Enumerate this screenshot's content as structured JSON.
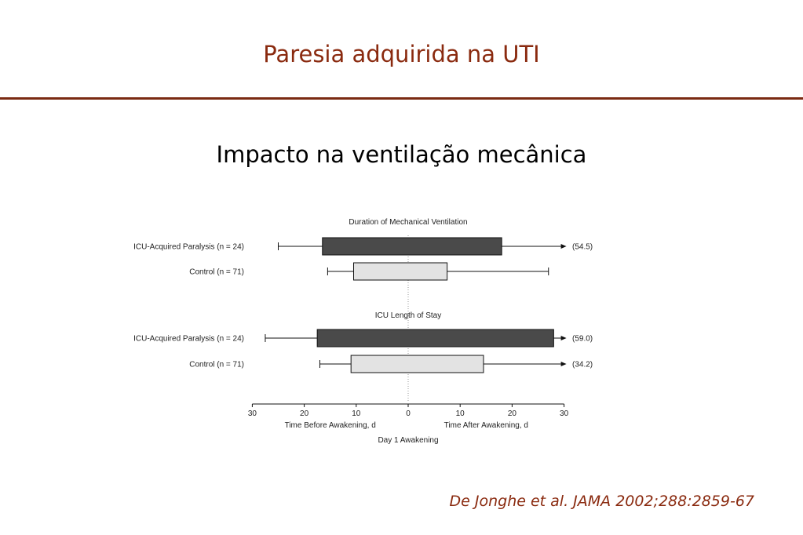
{
  "slide": {
    "title": "Paresia adquirida na UTI",
    "subtitle": "Impacto na ventilação mecânica",
    "citation": "De Jonghe et al. JAMA 2002;288:2859-67"
  },
  "colors": {
    "title": "#8a2a0f",
    "rule": "#7a2a12",
    "dark_box": "#4a4a4a",
    "light_box": "#e3e3e3"
  },
  "chart_data": {
    "type": "box",
    "xlim": [
      -30,
      30
    ],
    "ticks": [
      "30",
      "20",
      "10",
      "0",
      "10",
      "20",
      "30"
    ],
    "xlabel_left": "Time Before Awakening, d",
    "xlabel_right": "Time After Awakening, d",
    "xlabel_center": "Day 1 Awakening",
    "panels": [
      {
        "title": "Duration of Mechanical Ventilation",
        "rows": [
          {
            "label": "ICU-Acquired Paralysis (n = 24)",
            "whisker_low": -25,
            "q1": -16.5,
            "q3": 18,
            "whisker_high": 30,
            "arrow": true,
            "max_label": "(54.5)",
            "shade": "dark"
          },
          {
            "label": "Control (n = 71)",
            "whisker_low": -15.5,
            "q1": -10.5,
            "q3": 7.5,
            "whisker_high": 27,
            "arrow": false,
            "max_label": "",
            "shade": "light"
          }
        ]
      },
      {
        "title": "ICU Length of Stay",
        "rows": [
          {
            "label": "ICU-Acquired Paralysis (n = 24)",
            "whisker_low": -27.5,
            "q1": -17.5,
            "q3": 28,
            "whisker_high": 30,
            "arrow": true,
            "max_label": "(59.0)",
            "shade": "dark"
          },
          {
            "label": "Control (n = 71)",
            "whisker_low": -17,
            "q1": -11,
            "q3": 14.5,
            "whisker_high": 30,
            "arrow": true,
            "max_label": "(34.2)",
            "shade": "light"
          }
        ]
      }
    ]
  }
}
